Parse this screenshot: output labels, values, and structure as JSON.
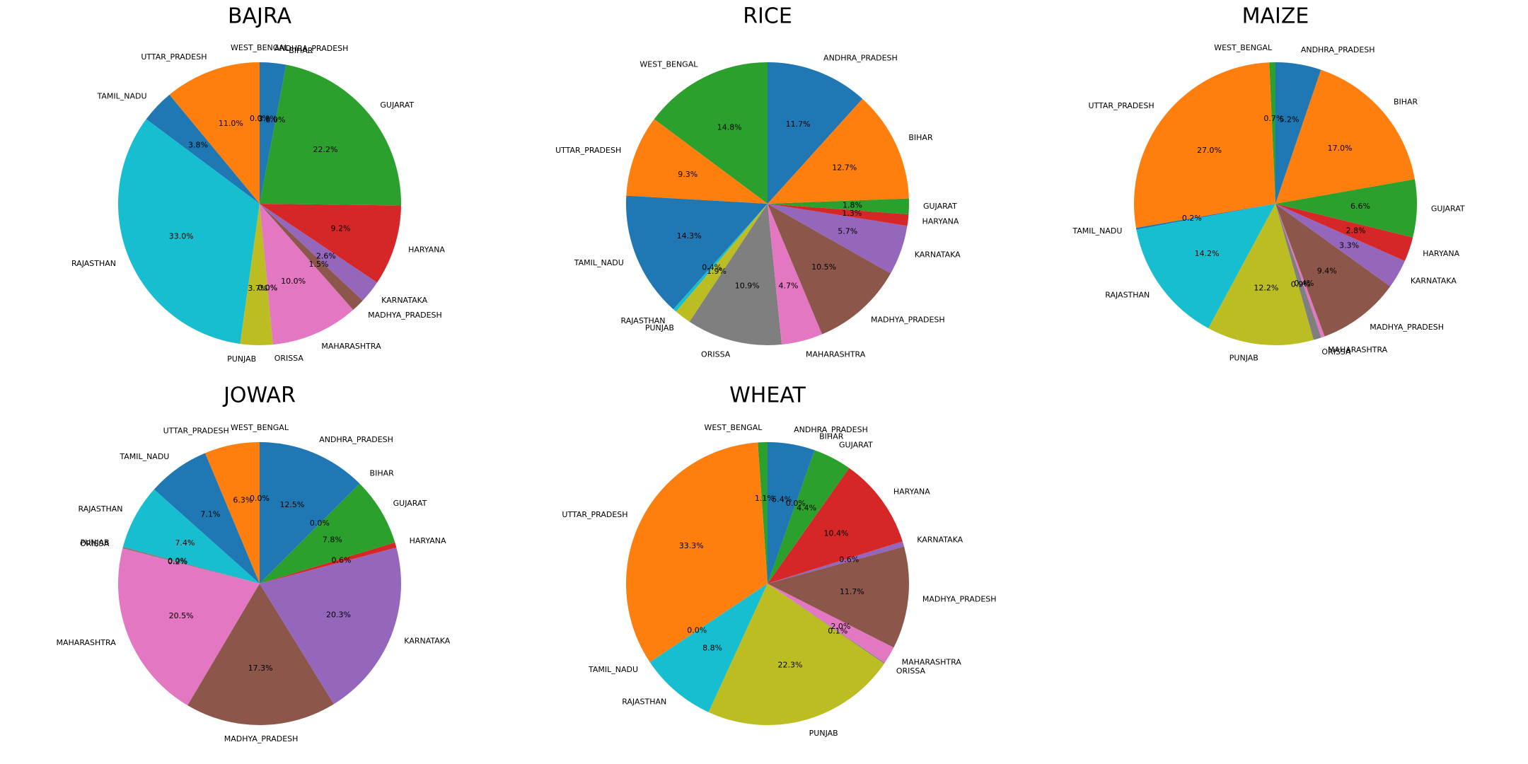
{
  "chart_data": [
    {
      "type": "pie",
      "title": "BAJRA",
      "slices": [
        {
          "label": "WEST_BENGAL",
          "value": 0.0,
          "pct": "0.0%",
          "color": "#2ca02c"
        },
        {
          "label": "UTTAR_PRADESH",
          "value": 11.0,
          "pct": "11.0%",
          "color": "#ff7f0e"
        },
        {
          "label": "TAMIL_NADU",
          "value": 3.8,
          "pct": "3.8%",
          "color": "#1f77b4"
        },
        {
          "label": "RAJASTHAN",
          "value": 33.0,
          "pct": "33.0%",
          "color": "#17becf"
        },
        {
          "label": "PUNJAB",
          "value": 3.7,
          "pct": "3.7%",
          "color": "#bcbd22"
        },
        {
          "label": "",
          "value": 0.0,
          "pct": "0.0%",
          "color": "#7f7f7f"
        },
        {
          "label": "ORISSA",
          "value": 0.0,
          "pct": "0.0%",
          "color": "#7f7f7f"
        },
        {
          "label": "MAHARASHTRA",
          "value": 10.0,
          "pct": "10.0%",
          "color": "#e377c2"
        },
        {
          "label": "MADHYA_PRADESH",
          "value": 1.5,
          "pct": "1.5%",
          "color": "#8c564b"
        },
        {
          "label": "KARNATAKA",
          "value": 2.6,
          "pct": "2.6%",
          "color": "#9467bd"
        },
        {
          "label": "HARYANA",
          "value": 9.2,
          "pct": "9.2%",
          "color": "#d62728"
        },
        {
          "label": "GUJARAT",
          "value": 22.2,
          "pct": "22.2%",
          "color": "#2ca02c"
        },
        {
          "label": "BIHAR",
          "value": 0.0,
          "pct": "0.0%",
          "color": "#ff7f0e"
        },
        {
          "label": "ANDHRA_PRADESH",
          "value": 3.0,
          "pct": "3.?%",
          "color": "#1f77b4"
        }
      ]
    },
    {
      "type": "pie",
      "title": "RICE",
      "slices": [
        {
          "label": "WEST_BENGAL",
          "value": 14.8,
          "pct": "14.8%",
          "color": "#2ca02c"
        },
        {
          "label": "UTTAR_PRADESH",
          "value": 9.3,
          "pct": "9.3%",
          "color": "#ff7f0e"
        },
        {
          "label": "TAMIL_NADU",
          "value": 14.3,
          "pct": "14.3%",
          "color": "#1f77b4"
        },
        {
          "label": "RAJASTHAN",
          "value": 0.4,
          "pct": "0.4%",
          "color": "#17becf"
        },
        {
          "label": "PUNJAB",
          "value": 1.9,
          "pct": "1.9%",
          "color": "#bcbd22"
        },
        {
          "label": "ORISSA",
          "value": 10.9,
          "pct": "10.9%",
          "color": "#7f7f7f"
        },
        {
          "label": "MAHARASHTRA",
          "value": 4.7,
          "pct": "4.7%",
          "color": "#e377c2"
        },
        {
          "label": "MADHYA_PRADESH",
          "value": 10.5,
          "pct": "10.5%",
          "color": "#8c564b"
        },
        {
          "label": "KARNATAKA",
          "value": 5.7,
          "pct": "5.7%",
          "color": "#9467bd"
        },
        {
          "label": "HARYANA",
          "value": 1.3,
          "pct": "1.3%",
          "color": "#d62728"
        },
        {
          "label": "GUJARAT",
          "value": 1.8,
          "pct": "1.8%",
          "color": "#2ca02c"
        },
        {
          "label": "BIHAR",
          "value": 12.7,
          "pct": "12.7%",
          "color": "#ff7f0e"
        },
        {
          "label": "ANDHRA_PRADESH",
          "value": 11.7,
          "pct": "11.7%",
          "color": "#1f77b4"
        }
      ]
    },
    {
      "type": "pie",
      "title": "MAIZE",
      "slices": [
        {
          "label": "WEST_BENGAL",
          "value": 0.7,
          "pct": "0.7%",
          "color": "#2ca02c"
        },
        {
          "label": "UTTAR_PRADESH",
          "value": 27.0,
          "pct": "27.0%",
          "color": "#ff7f0e"
        },
        {
          "label": "TAMIL_NADU",
          "value": 0.2,
          "pct": "0.2%",
          "color": "#1f77b4"
        },
        {
          "label": "RAJASTHAN",
          "value": 14.2,
          "pct": "14.2%",
          "color": "#17becf"
        },
        {
          "label": "PUNJAB",
          "value": 12.2,
          "pct": "12.2%",
          "color": "#bcbd22"
        },
        {
          "label": "ORISSA",
          "value": 0.9,
          "pct": "0.9%",
          "color": "#7f7f7f"
        },
        {
          "label": "MAHARASHTRA",
          "value": 0.4,
          "pct": "0.4%",
          "color": "#e377c2"
        },
        {
          "label": "MADHYA_PRADESH",
          "value": 9.4,
          "pct": "9.4%",
          "color": "#8c564b"
        },
        {
          "label": "KARNATAKA",
          "value": 3.3,
          "pct": "3.3%",
          "color": "#9467bd"
        },
        {
          "label": "HARYANA",
          "value": 2.8,
          "pct": "2.8%",
          "color": "#d62728"
        },
        {
          "label": "GUJARAT",
          "value": 6.6,
          "pct": "6.6%",
          "color": "#2ca02c"
        },
        {
          "label": "BIHAR",
          "value": 17.0,
          "pct": "17.0%",
          "color": "#ff7f0e"
        },
        {
          "label": "ANDHRA_PRADESH",
          "value": 5.2,
          "pct": "5.2%",
          "color": "#1f77b4"
        }
      ]
    },
    {
      "type": "pie",
      "title": "JOWAR",
      "slices": [
        {
          "label": "WEST_BENGAL",
          "value": 0.0,
          "pct": "0.0%",
          "color": "#2ca02c"
        },
        {
          "label": "UTTAR_PRADESH",
          "value": 6.3,
          "pct": "6.3%",
          "color": "#ff7f0e"
        },
        {
          "label": "TAMIL_NADU",
          "value": 7.1,
          "pct": "7.1%",
          "color": "#1f77b4"
        },
        {
          "label": "RAJASTHAN",
          "value": 7.4,
          "pct": "7.4%",
          "color": "#17becf"
        },
        {
          "label": "PUNJAB",
          "value": 0.0,
          "pct": "0.0%",
          "color": "#bcbd22"
        },
        {
          "label": "ORISSA",
          "value": 0.2,
          "pct": "0.2%",
          "color": "#7f7f7f"
        },
        {
          "label": "MAHARASHTRA",
          "value": 20.5,
          "pct": "20.5%",
          "color": "#e377c2"
        },
        {
          "label": "MADHYA_PRADESH",
          "value": 17.3,
          "pct": "17.3%",
          "color": "#8c564b"
        },
        {
          "label": "KARNATAKA",
          "value": 20.3,
          "pct": "20.3%",
          "color": "#9467bd"
        },
        {
          "label": "HARYANA",
          "value": 0.6,
          "pct": "0.6%",
          "color": "#d62728"
        },
        {
          "label": "GUJARAT",
          "value": 7.8,
          "pct": "7.8%",
          "color": "#2ca02c"
        },
        {
          "label": "BIHAR",
          "value": 0.0,
          "pct": "0.0%",
          "color": "#ff7f0e"
        },
        {
          "label": "ANDHRA_PRADESH",
          "value": 12.5,
          "pct": "12.5%",
          "color": "#1f77b4"
        }
      ]
    },
    {
      "type": "pie",
      "title": "WHEAT",
      "slices": [
        {
          "label": "WEST_BENGAL",
          "value": 1.1,
          "pct": "1.1%",
          "color": "#2ca02c"
        },
        {
          "label": "UTTAR_PRADESH",
          "value": 33.3,
          "pct": "33.3%",
          "color": "#ff7f0e"
        },
        {
          "label": "TAMIL_NADU",
          "value": 0.0,
          "pct": "0.0%",
          "color": "#1f77b4"
        },
        {
          "label": "RAJASTHAN",
          "value": 8.8,
          "pct": "8.8%",
          "color": "#17becf"
        },
        {
          "label": "PUNJAB",
          "value": 22.3,
          "pct": "22.3%",
          "color": "#bcbd22"
        },
        {
          "label": "ORISSA",
          "value": 0.1,
          "pct": "0.1%",
          "color": "#7f7f7f"
        },
        {
          "label": "MAHARASHTRA",
          "value": 2.0,
          "pct": "2.0%",
          "color": "#e377c2"
        },
        {
          "label": "MADHYA_PRADESH",
          "value": 11.7,
          "pct": "11.7%",
          "color": "#8c564b"
        },
        {
          "label": "KARNATAKA",
          "value": 0.6,
          "pct": "0.6%",
          "color": "#9467bd"
        },
        {
          "label": "HARYANA",
          "value": 10.4,
          "pct": "10.4%",
          "color": "#d62728"
        },
        {
          "label": "GUJARAT",
          "value": 4.4,
          "pct": "4.4%",
          "color": "#2ca02c"
        },
        {
          "label": "BIHAR",
          "value": 0.0,
          "pct": "0.0%",
          "color": "#ff7f0e"
        },
        {
          "label": "ANDHRA_PRADESH",
          "value": 5.4,
          "pct": "5.4%",
          "color": "#1f77b4"
        }
      ]
    }
  ]
}
